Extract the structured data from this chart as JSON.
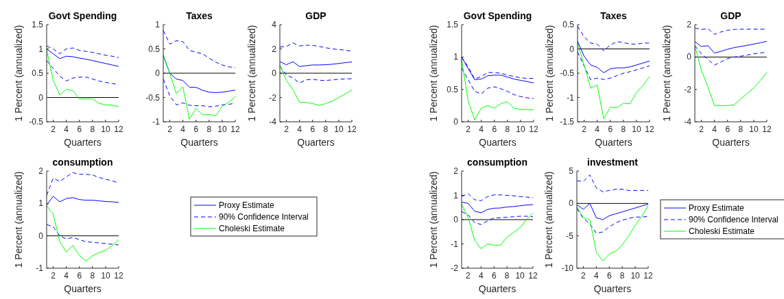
{
  "chart_data": [
    {
      "type": "line",
      "title": "Govt Spending",
      "xlabel": "Quarters",
      "ylabel": "1 Percent (annualized)",
      "x": [
        1,
        2,
        3,
        4,
        5,
        6,
        7,
        8,
        9,
        10,
        11,
        12
      ],
      "xlim": [
        1,
        12
      ],
      "xticks": [
        2,
        4,
        6,
        8,
        10,
        12
      ],
      "ylim": [
        -0.5,
        1.5
      ],
      "yticks": [
        -0.5,
        0,
        0.5,
        1,
        1.5
      ],
      "legend": false,
      "ref_lines": [
        {
          "axis": "y",
          "value": 0,
          "color": "#000000"
        }
      ],
      "series": [
        {
          "color": "#0000ff",
          "line_style": "solid",
          "values": [
            1.0,
            0.9,
            0.8,
            0.85,
            0.84,
            0.81,
            0.79,
            0.76,
            0.73,
            0.7,
            0.67,
            0.64
          ]
        },
        {
          "color": "#0000ff",
          "line_style": "dashed",
          "values": [
            1.06,
            1.0,
            0.9,
            1.0,
            1.02,
            0.97,
            0.95,
            0.93,
            0.9,
            0.87,
            0.85,
            0.82
          ]
        },
        {
          "color": "#0000ff",
          "line_style": "dashed",
          "values": [
            0.76,
            0.6,
            0.44,
            0.34,
            0.4,
            0.42,
            0.42,
            0.38,
            0.34,
            0.31,
            0.29,
            0.26
          ]
        },
        {
          "color": "#00ff00",
          "line_style": "solid",
          "values": [
            0.98,
            0.36,
            0.05,
            0.17,
            0.14,
            -0.03,
            -0.03,
            -0.03,
            -0.12,
            -0.15,
            -0.16,
            -0.19
          ]
        }
      ]
    },
    {
      "type": "line",
      "title": "Taxes",
      "xlabel": "Quarters",
      "x": [
        1,
        2,
        3,
        4,
        5,
        6,
        7,
        8,
        9,
        10,
        11,
        12
      ],
      "xlim": [
        1,
        12
      ],
      "xticks": [
        2,
        4,
        6,
        8,
        10,
        12
      ],
      "ylim": [
        -1,
        1
      ],
      "yticks": [
        -1,
        -0.5,
        0,
        0.5,
        1
      ],
      "legend": false,
      "ref_lines": [
        {
          "axis": "y",
          "value": 0,
          "color": "#000000"
        }
      ],
      "series": [
        {
          "color": "#0000ff",
          "line_style": "solid",
          "values": [
            0.36,
            0.0,
            -0.12,
            -0.15,
            -0.29,
            -0.29,
            -0.35,
            -0.39,
            -0.4,
            -0.39,
            -0.37,
            -0.35
          ]
        },
        {
          "color": "#0000ff",
          "line_style": "dashed",
          "values": [
            0.88,
            0.6,
            0.67,
            0.65,
            0.47,
            0.43,
            0.4,
            0.31,
            0.23,
            0.17,
            0.13,
            0.12
          ]
        },
        {
          "color": "#0000ff",
          "line_style": "dashed",
          "values": [
            -0.12,
            -0.47,
            -0.65,
            -0.61,
            -0.66,
            -0.67,
            -0.67,
            -0.69,
            -0.68,
            -0.65,
            -0.64,
            -0.62
          ]
        },
        {
          "color": "#00ff00",
          "line_style": "solid",
          "values": [
            0.38,
            0.0,
            -0.42,
            -0.28,
            -0.95,
            -0.72,
            -0.86,
            -0.85,
            -0.88,
            -0.68,
            -0.6,
            -0.48
          ]
        }
      ]
    },
    {
      "type": "line",
      "title": "GDP",
      "xlabel": "Quarters",
      "ylabel": "1 Percent (annualized)",
      "x": [
        1,
        2,
        3,
        4,
        5,
        6,
        7,
        8,
        9,
        10,
        11,
        12
      ],
      "xlim": [
        1,
        12
      ],
      "xticks": [
        2,
        4,
        6,
        8,
        10,
        12
      ],
      "ylim": [
        -4,
        4
      ],
      "yticks": [
        -4,
        -2,
        0,
        2,
        4
      ],
      "legend": false,
      "ref_lines": [
        {
          "axis": "y",
          "value": 0,
          "color": "#000000"
        }
      ],
      "series": [
        {
          "color": "#0000ff",
          "line_style": "solid",
          "values": [
            0.95,
            0.7,
            0.95,
            0.55,
            0.62,
            0.68,
            0.68,
            0.7,
            0.74,
            0.8,
            0.87,
            0.93
          ]
        },
        {
          "color": "#0000ff",
          "line_style": "dashed",
          "values": [
            2.15,
            2.2,
            2.5,
            2.25,
            2.3,
            2.3,
            2.2,
            2.1,
            2.0,
            1.95,
            1.9,
            1.8
          ]
        },
        {
          "color": "#0000ff",
          "line_style": "dashed",
          "values": [
            0.6,
            -0.15,
            -0.4,
            -0.8,
            -0.55,
            -0.5,
            -0.58,
            -0.6,
            -0.55,
            -0.5,
            -0.47,
            -0.45
          ]
        },
        {
          "color": "#00ff00",
          "line_style": "solid",
          "values": [
            0.65,
            -0.6,
            -1.35,
            -2.4,
            -2.4,
            -2.5,
            -2.65,
            -2.5,
            -2.3,
            -2.0,
            -1.7,
            -1.38
          ]
        }
      ]
    },
    {
      "type": "line",
      "title": "consumption",
      "xlabel": "Quarters",
      "ylabel": "1 Percent (annualized)",
      "x": [
        1,
        2,
        3,
        4,
        5,
        6,
        7,
        8,
        9,
        10,
        11,
        12
      ],
      "xlim": [
        1,
        12
      ],
      "xticks": [
        2,
        4,
        6,
        8,
        10,
        12
      ],
      "ylim": [
        -1,
        2
      ],
      "yticks": [
        -1,
        0,
        1,
        2
      ],
      "legend": "right",
      "ref_lines": [
        {
          "axis": "y",
          "value": 0,
          "color": "#000000"
        }
      ],
      "series": [
        {
          "name": "Proxy Estimate",
          "color": "#0000ff",
          "line_style": "solid",
          "values": [
            0.95,
            1.22,
            1.05,
            1.15,
            1.18,
            1.12,
            1.1,
            1.1,
            1.08,
            1.06,
            1.05,
            1.03
          ]
        },
        {
          "name": "90% Confidence Interval",
          "color": "#0000ff",
          "line_style": "dashed",
          "values": [
            1.25,
            1.78,
            1.68,
            1.82,
            1.95,
            1.9,
            1.9,
            1.88,
            1.8,
            1.75,
            1.7,
            1.63
          ]
        },
        {
          "color": "#0000ff",
          "line_style": "dashed",
          "values": [
            0.35,
            0.28,
            0.0,
            -0.1,
            -0.05,
            -0.12,
            -0.18,
            -0.2,
            -0.22,
            -0.24,
            -0.26,
            -0.28
          ]
        },
        {
          "name": "Choleski Estimate",
          "color": "#00ff00",
          "line_style": "solid",
          "values": [
            0.93,
            0.67,
            -0.18,
            -0.5,
            -0.3,
            -0.6,
            -0.78,
            -0.62,
            -0.52,
            -0.45,
            -0.3,
            -0.12
          ]
        }
      ]
    },
    {
      "type": "line",
      "title": "Govt Spending",
      "xlabel": "Quarters",
      "ylabel": "1 Percent (annualized)",
      "x": [
        1,
        2,
        3,
        4,
        5,
        6,
        7,
        8,
        9,
        10,
        11,
        12
      ],
      "xlim": [
        1,
        12
      ],
      "xticks": [
        2,
        4,
        6,
        8,
        10,
        12
      ],
      "ylim": [
        0,
        1.5
      ],
      "yticks": [
        0,
        0.5,
        1,
        1.5
      ],
      "legend": false,
      "series": [
        {
          "color": "#0000ff",
          "line_style": "solid",
          "values": [
            1.0,
            0.82,
            0.65,
            0.66,
            0.71,
            0.72,
            0.72,
            0.69,
            0.66,
            0.64,
            0.62,
            0.6
          ]
        },
        {
          "color": "#0000ff",
          "line_style": "dashed",
          "values": [
            1.0,
            0.85,
            0.66,
            0.7,
            0.76,
            0.76,
            0.75,
            0.72,
            0.7,
            0.68,
            0.67,
            0.67
          ]
        },
        {
          "color": "#0000ff",
          "line_style": "dashed",
          "values": [
            0.83,
            0.65,
            0.47,
            0.43,
            0.52,
            0.54,
            0.51,
            0.47,
            0.42,
            0.39,
            0.37,
            0.36
          ]
        },
        {
          "color": "#00ff00",
          "line_style": "solid",
          "values": [
            0.97,
            0.32,
            0.03,
            0.21,
            0.25,
            0.21,
            0.28,
            0.31,
            0.21,
            0.19,
            0.19,
            0.18
          ]
        }
      ]
    },
    {
      "type": "line",
      "title": "Taxes",
      "xlabel": "Quarters",
      "ylabel": "1 Percent (annualized)",
      "x": [
        1,
        2,
        3,
        4,
        5,
        6,
        7,
        8,
        9,
        10,
        11,
        12
      ],
      "xlim": [
        1,
        12
      ],
      "xticks": [
        2,
        4,
        6,
        8,
        10,
        12
      ],
      "ylim": [
        -1.5,
        0.5
      ],
      "yticks": [
        -1.5,
        -1,
        -0.5,
        0,
        0.5
      ],
      "legend": false,
      "ref_lines": [
        {
          "axis": "y",
          "value": 0,
          "color": "#000000"
        }
      ],
      "series": [
        {
          "color": "#0000ff",
          "line_style": "solid",
          "values": [
            0.16,
            -0.15,
            -0.33,
            -0.38,
            -0.49,
            -0.41,
            -0.39,
            -0.39,
            -0.37,
            -0.33,
            -0.29,
            -0.25
          ]
        },
        {
          "color": "#0000ff",
          "line_style": "dashed",
          "values": [
            0.47,
            0.25,
            0.12,
            0.1,
            -0.04,
            0.08,
            0.15,
            0.13,
            0.1,
            0.1,
            0.12,
            0.12
          ]
        },
        {
          "color": "#0000ff",
          "line_style": "dashed",
          "values": [
            -0.06,
            -0.35,
            -0.63,
            -0.6,
            -0.63,
            -0.6,
            -0.55,
            -0.5,
            -0.47,
            -0.43,
            -0.39,
            -0.35
          ]
        },
        {
          "color": "#00ff00",
          "line_style": "solid",
          "values": [
            0.12,
            -0.33,
            -0.81,
            -0.74,
            -1.44,
            -1.2,
            -1.21,
            -1.12,
            -1.13,
            -0.9,
            -0.75,
            -0.57
          ]
        }
      ]
    },
    {
      "type": "line",
      "title": "GDP",
      "xlabel": "Quarters",
      "ylabel": "1 Percent (annualized)",
      "x": [
        1,
        2,
        3,
        4,
        5,
        6,
        7,
        8,
        9,
        10,
        11,
        12
      ],
      "xlim": [
        1,
        12
      ],
      "xticks": [
        2,
        4,
        6,
        8,
        10,
        12
      ],
      "ylim": [
        -4,
        2
      ],
      "yticks": [
        -4,
        -2,
        0,
        2
      ],
      "legend": false,
      "ref_lines": [
        {
          "axis": "y",
          "value": 0,
          "color": "#000000"
        }
      ],
      "series": [
        {
          "color": "#0000ff",
          "line_style": "solid",
          "values": [
            0.95,
            0.65,
            0.7,
            0.25,
            0.35,
            0.48,
            0.58,
            0.65,
            0.72,
            0.8,
            0.88,
            0.97
          ]
        },
        {
          "color": "#0000ff",
          "line_style": "dashed",
          "values": [
            1.8,
            1.7,
            1.75,
            1.4,
            1.55,
            1.65,
            1.7,
            1.72,
            1.72,
            1.72,
            1.72,
            1.72
          ]
        },
        {
          "color": "#0000ff",
          "line_style": "dashed",
          "values": [
            0.7,
            0.2,
            -0.15,
            -0.5,
            -0.3,
            -0.1,
            0.0,
            0.05,
            0.12,
            0.2,
            0.25,
            0.3
          ]
        },
        {
          "color": "#00ff00",
          "line_style": "solid",
          "values": [
            0.7,
            -0.8,
            -1.85,
            -3.0,
            -3.0,
            -3.0,
            -2.95,
            -2.6,
            -2.25,
            -1.9,
            -1.45,
            -0.95
          ]
        }
      ]
    },
    {
      "type": "line",
      "title": "consumption",
      "xlabel": "Quarters",
      "ylabel": "1 Percent (annualized)",
      "x": [
        1,
        2,
        3,
        4,
        5,
        6,
        7,
        8,
        9,
        10,
        11,
        12
      ],
      "xlim": [
        1,
        12
      ],
      "xticks": [
        2,
        4,
        6,
        8,
        10,
        12
      ],
      "ylim": [
        -2,
        2
      ],
      "yticks": [
        -2,
        -1,
        0,
        1,
        2
      ],
      "legend": false,
      "ref_lines": [
        {
          "axis": "y",
          "value": 0,
          "color": "#000000"
        }
      ],
      "series": [
        {
          "color": "#0000ff",
          "line_style": "solid",
          "values": [
            0.72,
            0.67,
            0.35,
            0.28,
            0.42,
            0.47,
            0.48,
            0.52,
            0.54,
            0.57,
            0.6,
            0.62
          ]
        },
        {
          "color": "#0000ff",
          "line_style": "dashed",
          "values": [
            0.95,
            1.07,
            0.82,
            0.78,
            0.95,
            1.02,
            1.02,
            1.0,
            0.98,
            0.95,
            0.93,
            0.9
          ]
        },
        {
          "color": "#0000ff",
          "line_style": "dashed",
          "values": [
            0.33,
            0.2,
            -0.12,
            -0.2,
            -0.05,
            0.07,
            0.08,
            0.1,
            0.12,
            0.14,
            0.14,
            0.12
          ]
        },
        {
          "color": "#00ff00",
          "line_style": "solid",
          "values": [
            0.63,
            0.1,
            -0.85,
            -1.2,
            -1.0,
            -1.05,
            -1.05,
            -0.72,
            -0.53,
            -0.33,
            0.0,
            0.27
          ]
        }
      ]
    },
    {
      "type": "line",
      "title": "investment",
      "xlabel": "Quarters",
      "ylabel": "1 Percent (annualized)",
      "x": [
        1,
        2,
        3,
        4,
        5,
        6,
        7,
        8,
        9,
        10,
        11,
        12
      ],
      "xlim": [
        1,
        12
      ],
      "xticks": [
        2,
        4,
        6,
        8,
        10,
        12
      ],
      "ylim": [
        -10,
        5
      ],
      "yticks": [
        -10,
        -5,
        0,
        5
      ],
      "legend": "right",
      "ref_lines": [
        {
          "axis": "y",
          "value": 0,
          "color": "#000000"
        }
      ],
      "series": [
        {
          "name": "Proxy Estimate",
          "color": "#0000ff",
          "line_style": "solid",
          "values": [
            -0.2,
            -0.9,
            0.0,
            -2.2,
            -2.5,
            -1.9,
            -1.6,
            -1.3,
            -1.0,
            -0.7,
            -0.4,
            -0.1
          ]
        },
        {
          "name": "90% Confidence Interval",
          "color": "#0000ff",
          "line_style": "dashed",
          "values": [
            3.5,
            3.4,
            4.4,
            2.4,
            1.8,
            2.0,
            2.2,
            2.2,
            2.0,
            2.0,
            2.0,
            2.0
          ]
        },
        {
          "color": "#0000ff",
          "line_style": "dashed",
          "values": [
            -0.8,
            -2.3,
            -3.1,
            -4.6,
            -4.4,
            -3.6,
            -3.0,
            -2.6,
            -2.3,
            -2.1,
            -2.1,
            -2.0
          ]
        },
        {
          "name": "Choleski Estimate",
          "color": "#00ff00",
          "line_style": "solid",
          "values": [
            -0.5,
            -2.2,
            -2.5,
            -7.5,
            -8.9,
            -7.8,
            -7.4,
            -6.4,
            -5.0,
            -3.4,
            -2.0,
            -0.3
          ]
        }
      ]
    }
  ]
}
